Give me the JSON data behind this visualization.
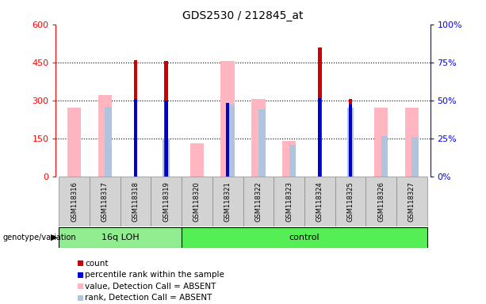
{
  "title": "GDS2530 / 212845_at",
  "samples": [
    "GSM118316",
    "GSM118317",
    "GSM118318",
    "GSM118319",
    "GSM118320",
    "GSM118321",
    "GSM118322",
    "GSM118323",
    "GSM118324",
    "GSM118325",
    "GSM118326",
    "GSM118327"
  ],
  "count": [
    0,
    0,
    460,
    455,
    0,
    0,
    0,
    0,
    510,
    305,
    0,
    0
  ],
  "percentile_rank": [
    0,
    0,
    305,
    300,
    0,
    290,
    0,
    0,
    310,
    285,
    0,
    0
  ],
  "value_absent": [
    270,
    320,
    0,
    0,
    130,
    455,
    305,
    140,
    0,
    0,
    270,
    270
  ],
  "rank_absent": [
    0,
    275,
    0,
    150,
    0,
    285,
    265,
    125,
    0,
    270,
    160,
    155
  ],
  "ylim_left": [
    0,
    600
  ],
  "ylim_right": [
    0,
    100
  ],
  "yticks_left": [
    0,
    150,
    300,
    450,
    600
  ],
  "yticks_right": [
    0,
    25,
    50,
    75,
    100
  ],
  "bar_color_count": "#CC0000",
  "bar_color_rank": "#0000CC",
  "bar_color_value_absent": "#FFB6C1",
  "bar_color_rank_absent": "#B0C4DE",
  "group_16q_color": "#90EE90",
  "group_control_color": "#55EE55",
  "legend_items": [
    {
      "label": "count",
      "color": "#CC0000"
    },
    {
      "label": "percentile rank within the sample",
      "color": "#0000CC"
    },
    {
      "label": "value, Detection Call = ABSENT",
      "color": "#FFB6C1"
    },
    {
      "label": "rank, Detection Call = ABSENT",
      "color": "#B0C4DE"
    }
  ]
}
